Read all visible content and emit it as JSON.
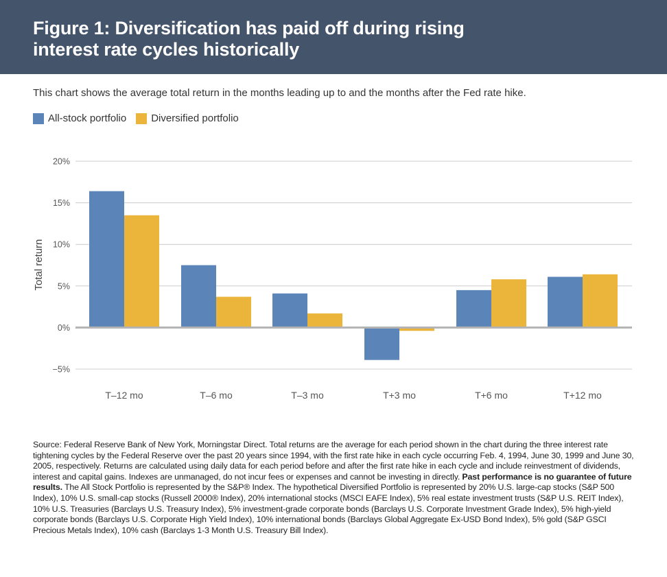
{
  "header": {
    "title": "Figure 1: Diversification has paid off during rising interest rate cycles historically"
  },
  "subtitle": "This chart shows the average total return in the months leading up to and the months after the Fed rate hike.",
  "colors": {
    "header_bg": "#44546a",
    "all_stock": "#5b84b8",
    "diversified": "#eab53a",
    "gridline": "#cccccc",
    "zero_line": "#b3b3b3"
  },
  "chart_data": {
    "type": "bar",
    "categories": [
      "T–12 mo",
      "T–6 mo",
      "T–3 mo",
      "T+3 mo",
      "T+6 mo",
      "T+12 mo"
    ],
    "series": [
      {
        "name": "All-stock portfolio",
        "values": [
          16.4,
          7.5,
          4.1,
          -3.9,
          4.5,
          6.1
        ]
      },
      {
        "name": "Diversified portfolio",
        "values": [
          13.5,
          3.7,
          1.7,
          -0.4,
          5.8,
          6.4
        ]
      }
    ],
    "ylabel": "Total return",
    "yticks": [
      "20%",
      "15%",
      "10%",
      "5%",
      "0%",
      "−5%"
    ],
    "ylim": [
      -5,
      20
    ],
    "grid": true,
    "legend": "top-left"
  },
  "footnote": {
    "source": "Source: Federal Reserve Bank of New York, Morningstar Direct. Total returns are the average for each period shown in the chart during the three interest rate tightening cycles by the Federal Reserve over the past 20 years since 1994, with the first rate hike in each cycle occurring Feb. 4, 1994, June 30, 1999 and June 30, 2005, respectively. Returns are calculated using daily data for each period before and after the first rate hike in each cycle and include reinvestment of dividends, interest and capital gains. Indexes are unmanaged, do not incur fees or expenses and cannot be investing in directly.",
    "bold": "Past performance is no guarantee of future results.",
    "rest": " The All Stock Portfolio is represented by the S&P® Index. The hypothetical Diversified Portfolio is represented by 20% U.S. large-cap stocks (S&P 500 Index), 10% U.S. small-cap stocks (Russell 2000® Index), 20% international stocks (MSCI EAFE Index), 5% real estate investment trusts (S&P U.S. REIT Index), 10% U.S. Treasuries (Barclays U.S. Treasury Index), 5% investment-grade corporate bonds (Barclays U.S. Corporate Investment Grade Index), 5% high-yield corporate bonds (Barclays U.S. Corporate High Yield Index), 10% international bonds (Barclays Global Aggregate Ex-USD Bond Index), 5% gold (S&P GSCI Precious Metals Index), 10% cash (Barclays 1-3 Month U.S. Treasury Bill Index)."
  }
}
